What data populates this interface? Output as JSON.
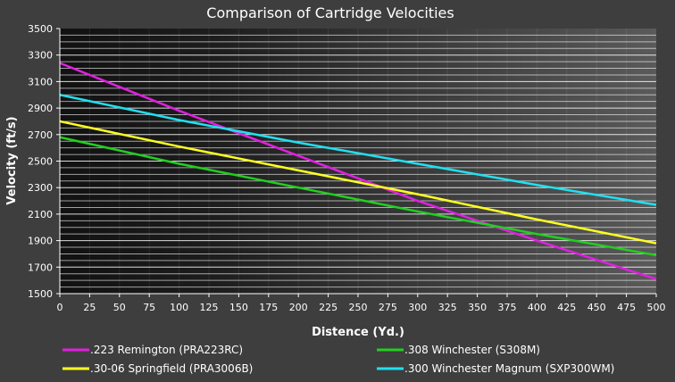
{
  "chart_data": {
    "type": "line",
    "title": "Comparison of Cartridge Velocities",
    "xlabel": "Distence (Yd.)",
    "ylabel": "Velocity (ft/s)",
    "xlim": [
      0,
      500
    ],
    "ylim": [
      1500,
      3500
    ],
    "x_ticks": [
      "0",
      "25",
      "50",
      "75",
      "100",
      "125",
      "150",
      "175",
      "200",
      "225",
      "250",
      "275",
      "300",
      "325",
      "350",
      "375",
      "400",
      "425",
      "450",
      "475",
      "500"
    ],
    "y_ticks": [
      "1500",
      "1700",
      "1900",
      "2100",
      "2300",
      "2500",
      "2700",
      "2900",
      "3100",
      "3300",
      "3500"
    ],
    "grid": true,
    "legend_position": "bottom",
    "x": [
      0,
      100,
      200,
      300,
      400,
      500
    ],
    "series": [
      {
        "name": ".223 Remington (PRA223RC)",
        "color": "#e020e0",
        "values": [
          3240,
          2880,
          2540,
          2200,
          1900,
          1610
        ]
      },
      {
        "name": ".308 Winchester (S308M)",
        "color": "#20d020",
        "values": [
          2680,
          2480,
          2300,
          2120,
          1950,
          1790
        ]
      },
      {
        "name": ".30-06 Springfield (PRA3006B)",
        "color": "#ffff20",
        "values": [
          2800,
          2610,
          2430,
          2250,
          2060,
          1880
        ]
      },
      {
        "name": ".300 Winchester Magnum (SXP300WM)",
        "color": "#20e0f0",
        "values": [
          3000,
          2810,
          2640,
          2480,
          2320,
          2170
        ]
      }
    ]
  }
}
